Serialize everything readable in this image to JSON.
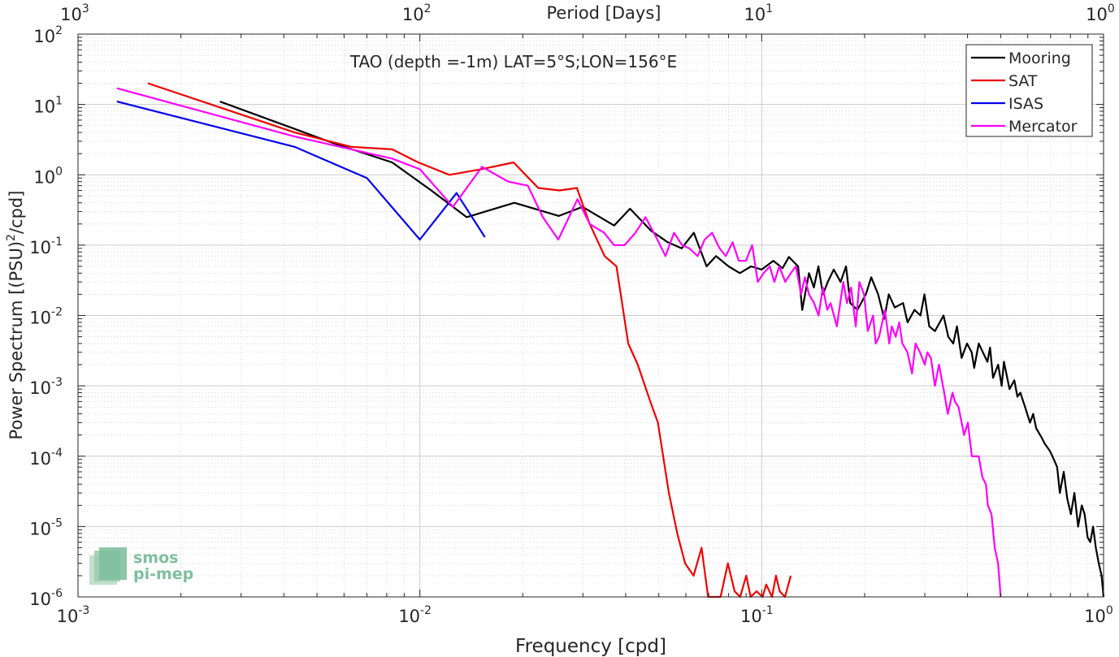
{
  "chart_data": {
    "type": "line",
    "title": "TAO (depth =-1m) LAT=5°S;LON=156°E",
    "xlabel": "Frequency [cpd]",
    "ylabel_main": "Power Spectrum [(PSU)",
    "ylabel_sup": "2",
    "ylabel_tail": "/cpd]",
    "top_xlabel": "Period [Days]",
    "x_scale": "log",
    "y_scale": "log",
    "xlim": [
      0.001,
      1
    ],
    "ylim": [
      1e-06,
      100
    ],
    "grid": true,
    "minor_grid": true,
    "legend_position": "top-right",
    "x_ticks": [
      {
        "value": 0.001,
        "base": "10",
        "exp": "-3"
      },
      {
        "value": 0.01,
        "base": "10",
        "exp": "-2"
      },
      {
        "value": 0.1,
        "base": "10",
        "exp": "-1"
      },
      {
        "value": 1,
        "base": "10",
        "exp": "0"
      }
    ],
    "top_ticks": [
      {
        "value": 0.001,
        "base": "10",
        "exp": "3"
      },
      {
        "value": 0.01,
        "base": "10",
        "exp": "2"
      },
      {
        "value": 0.1,
        "base": "10",
        "exp": "1"
      },
      {
        "value": 1,
        "base": "10",
        "exp": "0"
      }
    ],
    "y_ticks": [
      {
        "value": 100,
        "base": "10",
        "exp": "2"
      },
      {
        "value": 10,
        "base": "10",
        "exp": "1"
      },
      {
        "value": 1,
        "base": "10",
        "exp": "0"
      },
      {
        "value": 0.1,
        "base": "10",
        "exp": "-1"
      },
      {
        "value": 0.01,
        "base": "10",
        "exp": "-2"
      },
      {
        "value": 0.001,
        "base": "10",
        "exp": "-3"
      },
      {
        "value": 0.0001,
        "base": "10",
        "exp": "-4"
      },
      {
        "value": 1e-05,
        "base": "10",
        "exp": "-5"
      },
      {
        "value": 1e-06,
        "base": "10",
        "exp": "-6"
      }
    ],
    "series": [
      {
        "name": "Mooring",
        "color": "#000000",
        "x": [
          0.0026,
          0.0043,
          0.0056,
          0.0083,
          0.0108,
          0.0137,
          0.0189,
          0.0255,
          0.0299,
          0.037,
          0.0412,
          0.0475,
          0.0531,
          0.0583,
          0.0633,
          0.069,
          0.0735,
          0.08,
          0.0863,
          0.0931,
          0.1,
          0.1082,
          0.1151,
          0.1201,
          0.1278,
          0.1314,
          0.1375,
          0.1421,
          0.1465,
          0.1511,
          0.156,
          0.1625,
          0.1701,
          0.1765,
          0.1816,
          0.1905,
          0.2017,
          0.2091,
          0.2191,
          0.2283,
          0.2354,
          0.2449,
          0.2591,
          0.2671,
          0.2799,
          0.2914,
          0.2992,
          0.3091,
          0.3212,
          0.3404,
          0.3514,
          0.3632,
          0.3726,
          0.3843,
          0.3987,
          0.4114,
          0.4184,
          0.4315,
          0.4435,
          0.4575,
          0.4655,
          0.4751,
          0.4917,
          0.5034,
          0.5113,
          0.5308,
          0.5482,
          0.5599,
          0.5709,
          0.5894,
          0.6095,
          0.6224,
          0.6351,
          0.6603,
          0.6732,
          0.6956,
          0.7089,
          0.7317,
          0.7448,
          0.7649,
          0.783,
          0.8025,
          0.8216,
          0.8427,
          0.8634,
          0.8805,
          0.8981,
          0.9147,
          0.9316,
          0.9495,
          0.968,
          0.9871,
          1.0
        ],
        "y": [
          11.0,
          4.5,
          2.8,
          1.5,
          0.6,
          0.25,
          0.4,
          0.26,
          0.35,
          0.19,
          0.33,
          0.16,
          0.11,
          0.09,
          0.15,
          0.05,
          0.07,
          0.05,
          0.04,
          0.05,
          0.045,
          0.06,
          0.047,
          0.068,
          0.05,
          0.012,
          0.04,
          0.025,
          0.05,
          0.02,
          0.03,
          0.045,
          0.03,
          0.05,
          0.015,
          0.012,
          0.02,
          0.035,
          0.02,
          0.009,
          0.02,
          0.013,
          0.015,
          0.008,
          0.012,
          0.01,
          0.02,
          0.007,
          0.006,
          0.01,
          0.005,
          0.004,
          0.007,
          0.0025,
          0.004,
          0.003,
          0.0018,
          0.004,
          0.003,
          0.0022,
          0.0035,
          0.0013,
          0.002,
          0.001,
          0.0022,
          0.0009,
          0.0012,
          0.0007,
          0.0008,
          0.0005,
          0.0003,
          0.0004,
          0.00025,
          0.00018,
          0.00015,
          0.00012,
          0.0001,
          7e-05,
          3e-05,
          6e-05,
          2.5e-05,
          1.5e-05,
          3e-05,
          1e-05,
          2e-05,
          1.5e-05,
          7e-06,
          6e-06,
          1e-05,
          5e-06,
          3e-06,
          2e-06,
          1e-06
        ]
      },
      {
        "name": "SAT",
        "color": "#ee0000",
        "x": [
          0.0016,
          0.0043,
          0.0063,
          0.0083,
          0.0099,
          0.0122,
          0.0151,
          0.0188,
          0.0222,
          0.0256,
          0.0288,
          0.0314,
          0.0347,
          0.0376,
          0.0407,
          0.0434,
          0.0472,
          0.0497,
          0.0535,
          0.0566,
          0.0597,
          0.0632,
          0.0667,
          0.0697,
          0.0733,
          0.0758,
          0.0796,
          0.0833,
          0.0865,
          0.0901,
          0.0928,
          0.0966,
          0.1006,
          0.1031,
          0.1072,
          0.1101,
          0.1129,
          0.117,
          0.1216
        ],
        "y": [
          20.0,
          4.0,
          2.5,
          2.3,
          1.5,
          1.0,
          1.2,
          1.5,
          0.65,
          0.6,
          0.65,
          0.2,
          0.07,
          0.05,
          0.004,
          0.002,
          0.0006,
          0.0003,
          3e-05,
          8e-06,
          3e-06,
          2e-06,
          5e-06,
          1e-06,
          1e-06,
          1e-06,
          3e-06,
          1.2e-06,
          1e-06,
          2e-06,
          1e-06,
          1.2e-06,
          1e-06,
          1.5e-06,
          1e-06,
          2e-06,
          1.2e-06,
          1e-06,
          2e-06
        ]
      },
      {
        "name": "ISAS",
        "color": "#0000ee",
        "x": [
          0.0013,
          0.0043,
          0.007,
          0.01,
          0.0128,
          0.0155
        ],
        "y": [
          11.0,
          2.5,
          0.9,
          0.12,
          0.55,
          0.13
        ]
      },
      {
        "name": "Mercator",
        "color": "#ff00ff",
        "x": [
          0.0013,
          0.0043,
          0.0083,
          0.01,
          0.0125,
          0.0152,
          0.0181,
          0.0207,
          0.0229,
          0.0254,
          0.0289,
          0.0314,
          0.0346,
          0.037,
          0.0397,
          0.0427,
          0.0457,
          0.0491,
          0.0523,
          0.0554,
          0.0585,
          0.0614,
          0.065,
          0.0681,
          0.0716,
          0.0753,
          0.0785,
          0.0822,
          0.0857,
          0.0899,
          0.0938,
          0.0974,
          0.1013,
          0.1056,
          0.1089,
          0.1126,
          0.1172,
          0.1216,
          0.1259,
          0.1304,
          0.1338,
          0.1375,
          0.1423,
          0.1467,
          0.151,
          0.1555,
          0.159,
          0.1659,
          0.1732,
          0.1776,
          0.1826,
          0.1884,
          0.193,
          0.1992,
          0.2043,
          0.2118,
          0.2155,
          0.2205,
          0.2292,
          0.2361,
          0.2401,
          0.2465,
          0.2525,
          0.2579,
          0.2669,
          0.2752,
          0.2818,
          0.2904,
          0.2999,
          0.3052,
          0.3125,
          0.3212,
          0.3301,
          0.3418,
          0.3501,
          0.3616,
          0.3675,
          0.3765,
          0.3909,
          0.4008,
          0.4118,
          0.4227,
          0.4314,
          0.4421,
          0.4529,
          0.4587,
          0.4702,
          0.4805,
          0.4915,
          0.5
        ],
        "y": [
          17.0,
          3.5,
          1.7,
          1.2,
          0.35,
          1.3,
          0.8,
          0.7,
          0.25,
          0.12,
          0.45,
          0.2,
          0.15,
          0.1,
          0.1,
          0.15,
          0.25,
          0.13,
          0.07,
          0.15,
          0.1,
          0.09,
          0.07,
          0.12,
          0.15,
          0.09,
          0.07,
          0.11,
          0.06,
          0.06,
          0.1,
          0.03,
          0.04,
          0.05,
          0.03,
          0.05,
          0.03,
          0.04,
          0.05,
          0.02,
          0.035,
          0.02,
          0.015,
          0.01,
          0.025,
          0.012,
          0.015,
          0.007,
          0.03,
          0.015,
          0.025,
          0.007,
          0.03,
          0.02,
          0.006,
          0.01,
          0.004,
          0.005,
          0.012,
          0.004,
          0.007,
          0.005,
          0.008,
          0.004,
          0.003,
          0.0015,
          0.004,
          0.003,
          0.002,
          0.003,
          0.0025,
          0.001,
          0.002,
          0.0008,
          0.0004,
          0.0008,
          0.0006,
          0.0005,
          0.0002,
          0.0003,
          0.0001,
          0.0001,
          0.0001,
          5e-05,
          4e-05,
          2e-05,
          1.5e-05,
          5e-06,
          3e-06,
          1e-06
        ]
      }
    ]
  },
  "watermark": {
    "line1": "smos",
    "line2": "pi-mep",
    "color": "#7fbf9e"
  }
}
